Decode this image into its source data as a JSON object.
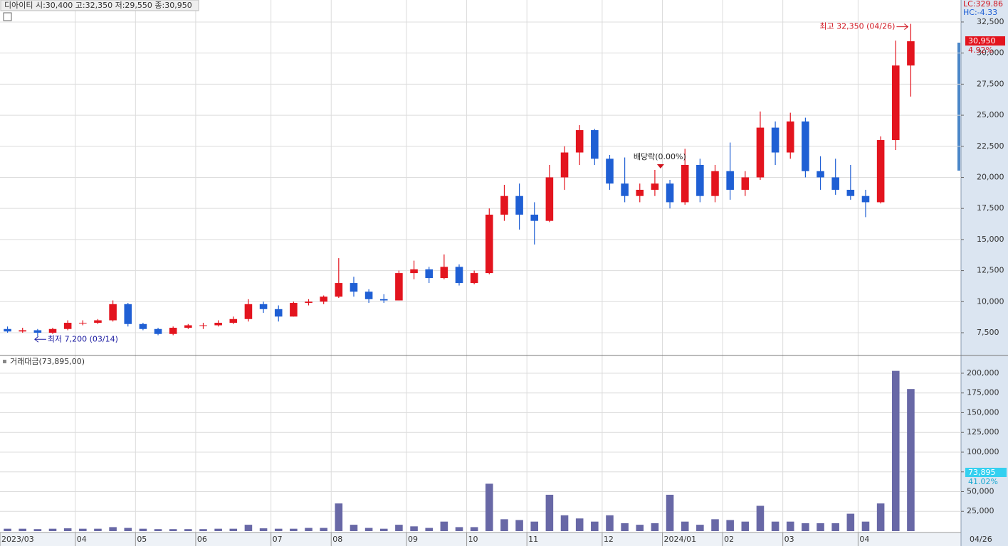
{
  "chart_data": {
    "type": "candlestick",
    "title": "디아이티 시:30,400 고:32,350 저:29,550 종:30,950",
    "indicators": [
      "LC:329.86",
      "HC:-4.33"
    ],
    "categories": [
      "2023/03",
      null,
      null,
      null,
      null,
      "04",
      null,
      null,
      null,
      "05",
      null,
      null,
      null,
      "06",
      null,
      null,
      null,
      null,
      "07",
      null,
      null,
      null,
      "08",
      null,
      null,
      null,
      null,
      "09",
      null,
      null,
      null,
      "10",
      null,
      null,
      null,
      "11",
      null,
      null,
      null,
      null,
      "12",
      null,
      null,
      null,
      "2024/01",
      null,
      null,
      null,
      "02",
      null,
      null,
      null,
      "03",
      null,
      null,
      null,
      null,
      "04",
      null,
      null,
      null
    ],
    "last_date": "04/26",
    "open": [
      7800,
      7600,
      7700,
      7500,
      7800,
      8300,
      8300,
      8500,
      9800,
      8200,
      7800,
      7400,
      7900,
      8100,
      8100,
      8300,
      8600,
      9800,
      9400,
      8800,
      9900,
      10000,
      10400,
      11500,
      10800,
      10200,
      10100,
      12300,
      12600,
      11900,
      12800,
      11500,
      12300,
      17000,
      18500,
      17000,
      16500,
      20000,
      22000,
      23800,
      21500,
      19500,
      18500,
      19000,
      19500,
      18000,
      21000,
      18500,
      20500,
      19000,
      20000,
      24000,
      22000,
      24500,
      20500,
      20000,
      19000,
      18500,
      18000,
      23000,
      29000
    ],
    "high": [
      8000,
      7900,
      7800,
      7900,
      8500,
      8500,
      8600,
      10100,
      9900,
      8300,
      7900,
      8000,
      8200,
      8300,
      8500,
      8800,
      10200,
      10000,
      9700,
      10000,
      10200,
      10500,
      13500,
      12000,
      11000,
      10600,
      12500,
      13300,
      12800,
      13800,
      13000,
      12500,
      17500,
      19400,
      19500,
      18000,
      21000,
      22500,
      24200,
      23900,
      21800,
      21600,
      19500,
      20600,
      19800,
      22300,
      21500,
      21000,
      22800,
      20500,
      25300,
      24500,
      25200,
      24800,
      21700,
      21500,
      21000,
      19000,
      23300,
      31000,
      32350
    ],
    "low": [
      7500,
      7500,
      7200,
      7400,
      7700,
      8100,
      8200,
      8400,
      8000,
      7700,
      7300,
      7300,
      7800,
      7800,
      8000,
      8200,
      8400,
      9100,
      8400,
      8800,
      9700,
      9800,
      10300,
      10400,
      9900,
      9900,
      10100,
      11800,
      11500,
      11800,
      11300,
      11400,
      12200,
      16500,
      15800,
      14600,
      16400,
      19000,
      21000,
      21000,
      19000,
      18000,
      18000,
      18500,
      17500,
      17800,
      18000,
      18000,
      18200,
      18500,
      19800,
      21000,
      21500,
      20000,
      19000,
      18600,
      18200,
      16800,
      17900,
      22200,
      26500
    ],
    "close": [
      7600,
      7700,
      7500,
      7800,
      8300,
      8300,
      8500,
      9800,
      8200,
      7800,
      7400,
      7900,
      8100,
      8100,
      8300,
      8600,
      9800,
      9400,
      8800,
      9900,
      10000,
      10400,
      11500,
      10800,
      10200,
      10100,
      12300,
      12600,
      11900,
      12800,
      11500,
      12300,
      17000,
      18500,
      17000,
      16500,
      20000,
      22000,
      23800,
      21500,
      19500,
      18500,
      19000,
      19500,
      18000,
      21000,
      18500,
      20500,
      19000,
      20000,
      24000,
      22000,
      24500,
      20500,
      20000,
      19000,
      18500,
      18000,
      23000,
      29000,
      30950
    ],
    "up_color": "#e3141e",
    "down_color": "#1f5fd4",
    "ylim": [
      5670,
      34270
    ],
    "yticks": [
      {
        "value": 7500,
        "label": "7,500"
      },
      {
        "value": 10000,
        "label": "10,000"
      },
      {
        "value": 12500,
        "label": "12,500"
      },
      {
        "value": 15000,
        "label": "15,000"
      },
      {
        "value": 17500,
        "label": "17,500"
      },
      {
        "value": 20000,
        "label": "20,000"
      },
      {
        "value": 22500,
        "label": "22,500"
      },
      {
        "value": 25000,
        "label": "25,000"
      },
      {
        "value": 27500,
        "label": "27,500"
      },
      {
        "value": 30000,
        "label": "30,000"
      },
      {
        "value": 32500,
        "label": "32,500"
      }
    ],
    "grid": true,
    "last_price": {
      "value": 30950,
      "label": "30,950",
      "change": "4.92%"
    },
    "annotations": [
      {
        "text": "최고 32,350 (04/26)",
        "index": 60,
        "value": 32350
      },
      {
        "text": "최저 7,200 (03/14)",
        "index": 2,
        "value": 7200
      },
      {
        "text": "배당락(0.00%)",
        "index": 43,
        "value": 20600
      }
    ],
    "volume": {
      "title": "거래대금(73,895,00)",
      "color": "#6868a6",
      "values": [
        3000,
        3000,
        2500,
        3000,
        3500,
        3000,
        3000,
        5000,
        4000,
        3000,
        2500,
        2500,
        2500,
        2500,
        3000,
        3000,
        8000,
        3500,
        3000,
        3000,
        4000,
        4000,
        35000,
        8000,
        4000,
        3000,
        8000,
        6000,
        4000,
        12000,
        5000,
        5000,
        60000,
        15000,
        14000,
        12000,
        46000,
        20000,
        16000,
        12000,
        20000,
        10000,
        8000,
        10000,
        46000,
        12000,
        8000,
        15000,
        14000,
        12000,
        32000,
        12000,
        12000,
        10000,
        10000,
        10000,
        22000,
        12000,
        35000,
        203000,
        180000
      ],
      "ylim": [
        0,
        222500
      ],
      "yticks": [
        {
          "value": 25000,
          "label": "25,000"
        },
        {
          "value": 50000,
          "label": "50,000"
        },
        {
          "value": 75000,
          "label": "75,000"
        },
        {
          "value": 100000,
          "label": "100,000"
        },
        {
          "value": 125000,
          "label": "125,000"
        },
        {
          "value": 150000,
          "label": "150,000"
        },
        {
          "value": 175000,
          "label": "175,000"
        },
        {
          "value": 200000,
          "label": "200,000"
        }
      ],
      "last": {
        "value": 73895,
        "label": "73,895",
        "change": "41.02%"
      }
    }
  }
}
